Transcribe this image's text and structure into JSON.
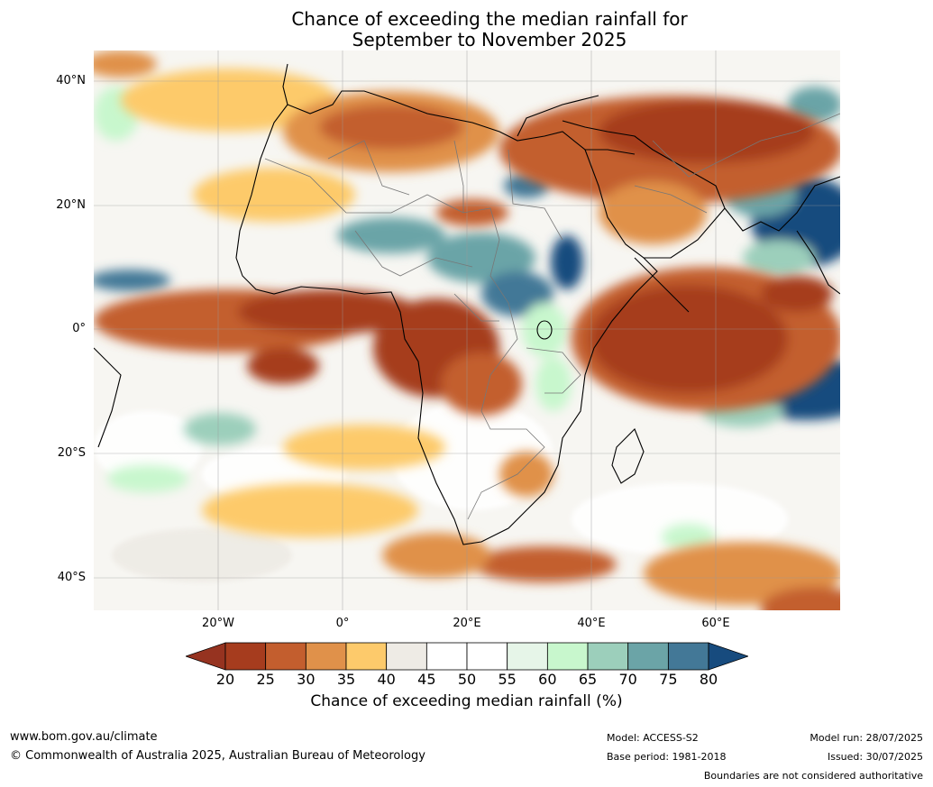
{
  "title_line1": "Chance of exceeding the median rainfall for",
  "title_line2": "September to November 2025",
  "map": {
    "lat_labels": [
      "40°N",
      "20°N",
      "0°",
      "20°S",
      "40°S"
    ],
    "lon_labels": [
      "20°W",
      "0°",
      "20°E",
      "40°E",
      "60°E"
    ]
  },
  "colorbar": {
    "ticks": [
      "20",
      "25",
      "30",
      "35",
      "40",
      "45",
      "50",
      "55",
      "60",
      "65",
      "70",
      "75",
      "80"
    ],
    "colors": [
      "#a63c1e",
      "#c35e2e",
      "#e0914a",
      "#fdca6b",
      "#eeebe5",
      "#ffffff",
      "#ffffff",
      "#e6f5e8",
      "#c8f7cd",
      "#9ccfbb",
      "#6ba4a7",
      "#437897"
    ],
    "under_color": "#963320",
    "over_color": "#174b7e",
    "label": "Chance of exceeding median rainfall (%)"
  },
  "footer": {
    "website": "www.bom.gov.au/climate",
    "copyright": "© Commonwealth of Australia 2025, Australian Bureau of Meteorology",
    "model": "Model: ACCESS-S2",
    "base_period": "Base period: 1981-2018",
    "model_run": "Model run: 28/07/2025",
    "issued": "Issued: 30/07/2025",
    "disclaimer": "Boundaries are not considered authoritative"
  }
}
